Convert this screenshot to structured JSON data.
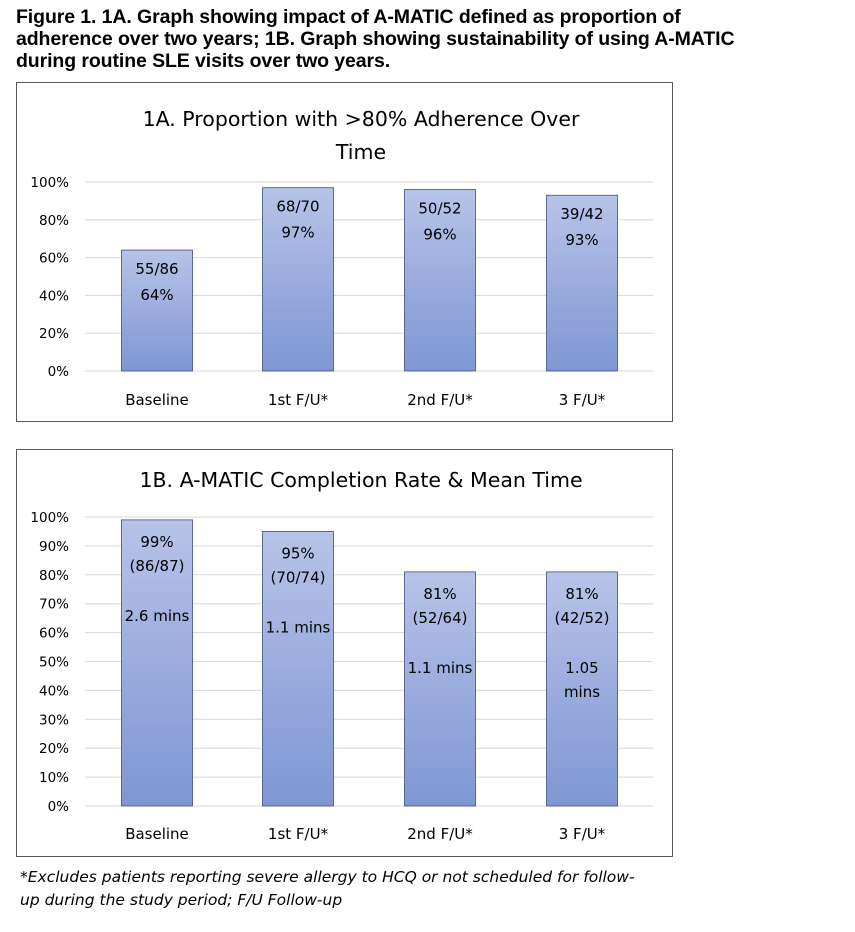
{
  "figure": {
    "title_lines": [
      "Figure 1. 1A. Graph showing impact of A-MATIC defined as proportion of",
      "adherence over two years; 1B. Graph showing sustainability of using A-MATIC",
      "during routine SLE visits over two years."
    ],
    "footnote_lines": [
      "*Excludes patients reporting severe allergy to HCQ or not scheduled for follow-",
      "up during the study period; F/U Follow-up"
    ]
  },
  "colors": {
    "bar_top": "#b7c3e8",
    "bar_bottom": "#7f96d4",
    "bar_stroke": "#3f4f7a",
    "grid": "#d9d9d9",
    "text": "#000000"
  },
  "chart_data": [
    {
      "type": "bar",
      "title_lines": [
        "1A. Proportion with >80% Adherence Over",
        "Time"
      ],
      "categories": [
        "Baseline",
        "1st F/U*",
        "2nd F/U*",
        "3 F/U*"
      ],
      "values": [
        64,
        97,
        96,
        93
      ],
      "data_labels": [
        [
          "55/86",
          "64%"
        ],
        [
          "68/70",
          "97%"
        ],
        [
          "50/52",
          "96%"
        ],
        [
          "39/42",
          "93%"
        ]
      ],
      "ylim": [
        0,
        100
      ],
      "y_ticks": [
        0,
        20,
        40,
        60,
        80,
        100
      ],
      "y_tick_labels": [
        "0%",
        "20%",
        "40%",
        "60%",
        "80%",
        "100%"
      ],
      "xlabel": "",
      "ylabel": "",
      "grid": true
    },
    {
      "type": "bar",
      "title_lines": [
        "1B. A-MATIC Completion Rate & Mean Time"
      ],
      "categories": [
        "Baseline",
        "1st F/U*",
        "2nd F/U*",
        "3 F/U*"
      ],
      "values": [
        99,
        95,
        81,
        81
      ],
      "data_labels": [
        [
          "99%",
          "(86/87)"
        ],
        [
          "95%",
          "(70/74)"
        ],
        [
          "81%",
          "(52/64)"
        ],
        [
          "81%",
          "(42/52)"
        ]
      ],
      "mean_time_labels": [
        [
          "2.6 mins"
        ],
        [
          "1.1 mins"
        ],
        [
          "1.1 mins"
        ],
        [
          "1.05",
          "mins"
        ]
      ],
      "ylim": [
        0,
        100
      ],
      "y_ticks": [
        0,
        10,
        20,
        30,
        40,
        50,
        60,
        70,
        80,
        90,
        100
      ],
      "y_tick_labels": [
        "0%",
        "10%",
        "20%",
        "30%",
        "40%",
        "50%",
        "60%",
        "70%",
        "80%",
        "90%",
        "100%"
      ],
      "xlabel": "",
      "ylabel": "",
      "grid": true
    }
  ]
}
